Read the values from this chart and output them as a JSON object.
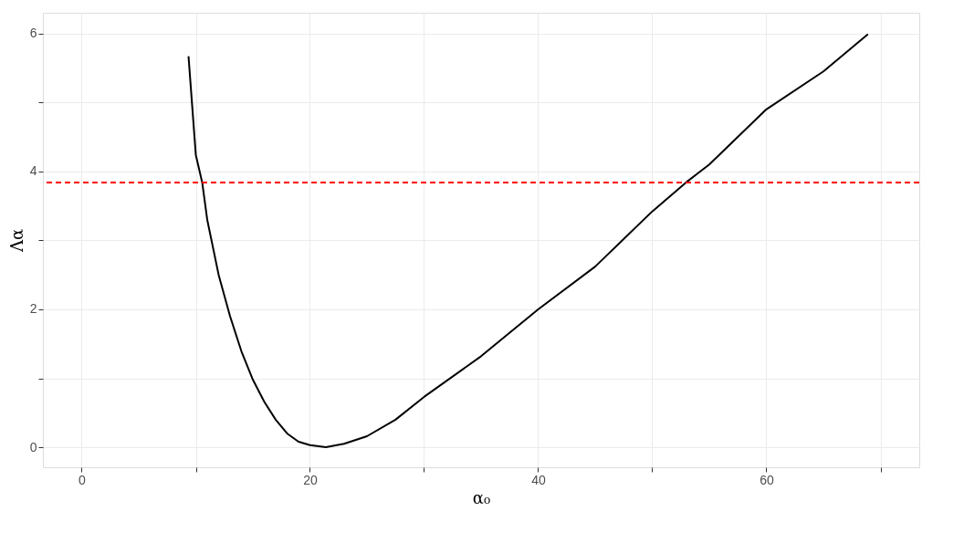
{
  "chart_data": {
    "type": "line",
    "xlabel": "α₀",
    "ylabel": "Λα",
    "series": [
      {
        "color": "#000000",
        "x": [
          9.36,
          10,
          10.56,
          11,
          12,
          13,
          14,
          15,
          16,
          17,
          18,
          19,
          20,
          21.4,
          23,
          25,
          27.5,
          30,
          35,
          40,
          45,
          50,
          52.96,
          55,
          60,
          65,
          68.9
        ],
        "values": [
          5.67,
          4.24,
          3.84,
          3.3,
          2.5,
          1.9,
          1.39,
          0.98,
          0.66,
          0.4,
          0.2,
          0.08,
          0.03,
          0.0,
          0.05,
          0.16,
          0.4,
          0.73,
          1.32,
          2.0,
          2.62,
          3.42,
          3.84,
          4.1,
          4.9,
          5.45,
          5.99
        ]
      }
    ],
    "xlim": [
      -3.4,
      73.4
    ],
    "ylim": [
      -0.29,
      6.3
    ],
    "xticks": [
      0,
      {
        "value": 10,
        "label": null
      },
      20,
      {
        "value": 30,
        "label": null
      },
      40,
      {
        "value": 50,
        "label": null
      },
      60,
      {
        "value": 70,
        "label": null
      }
    ],
    "yticks": [
      0,
      {
        "value": 1,
        "label": null
      },
      2,
      {
        "value": 3,
        "label": null
      },
      4,
      {
        "value": 5,
        "label": null
      },
      6
    ],
    "ref_lines": [
      {
        "axis": "y",
        "value": 3.84,
        "color": "#ff0000",
        "line_style": "dashed"
      }
    ],
    "grid": true,
    "line_style": "solid",
    "marker": "none"
  }
}
